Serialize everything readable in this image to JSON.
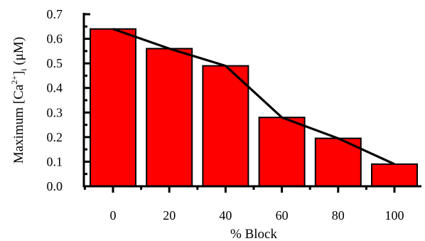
{
  "chart_data": {
    "type": "bar",
    "categories": [
      "0",
      "20",
      "40",
      "60",
      "80",
      "100"
    ],
    "values": [
      0.64,
      0.56,
      0.49,
      0.28,
      0.195,
      0.09
    ],
    "trend_line": [
      0.64,
      0.56,
      0.49,
      0.28,
      0.195,
      0.09
    ],
    "xlabel": "% Block",
    "ylabel_parts": [
      "Maximum [Ca",
      "2+",
      "]",
      "i",
      " (μM)"
    ],
    "ylim": [
      0,
      0.7
    ],
    "yticks": [
      "0.0",
      "0.1",
      "0.2",
      "0.3",
      "0.4",
      "0.5",
      "0.6",
      "0.7"
    ],
    "grid": false,
    "bar_color": "#ff0000",
    "line_color": "#000000"
  }
}
